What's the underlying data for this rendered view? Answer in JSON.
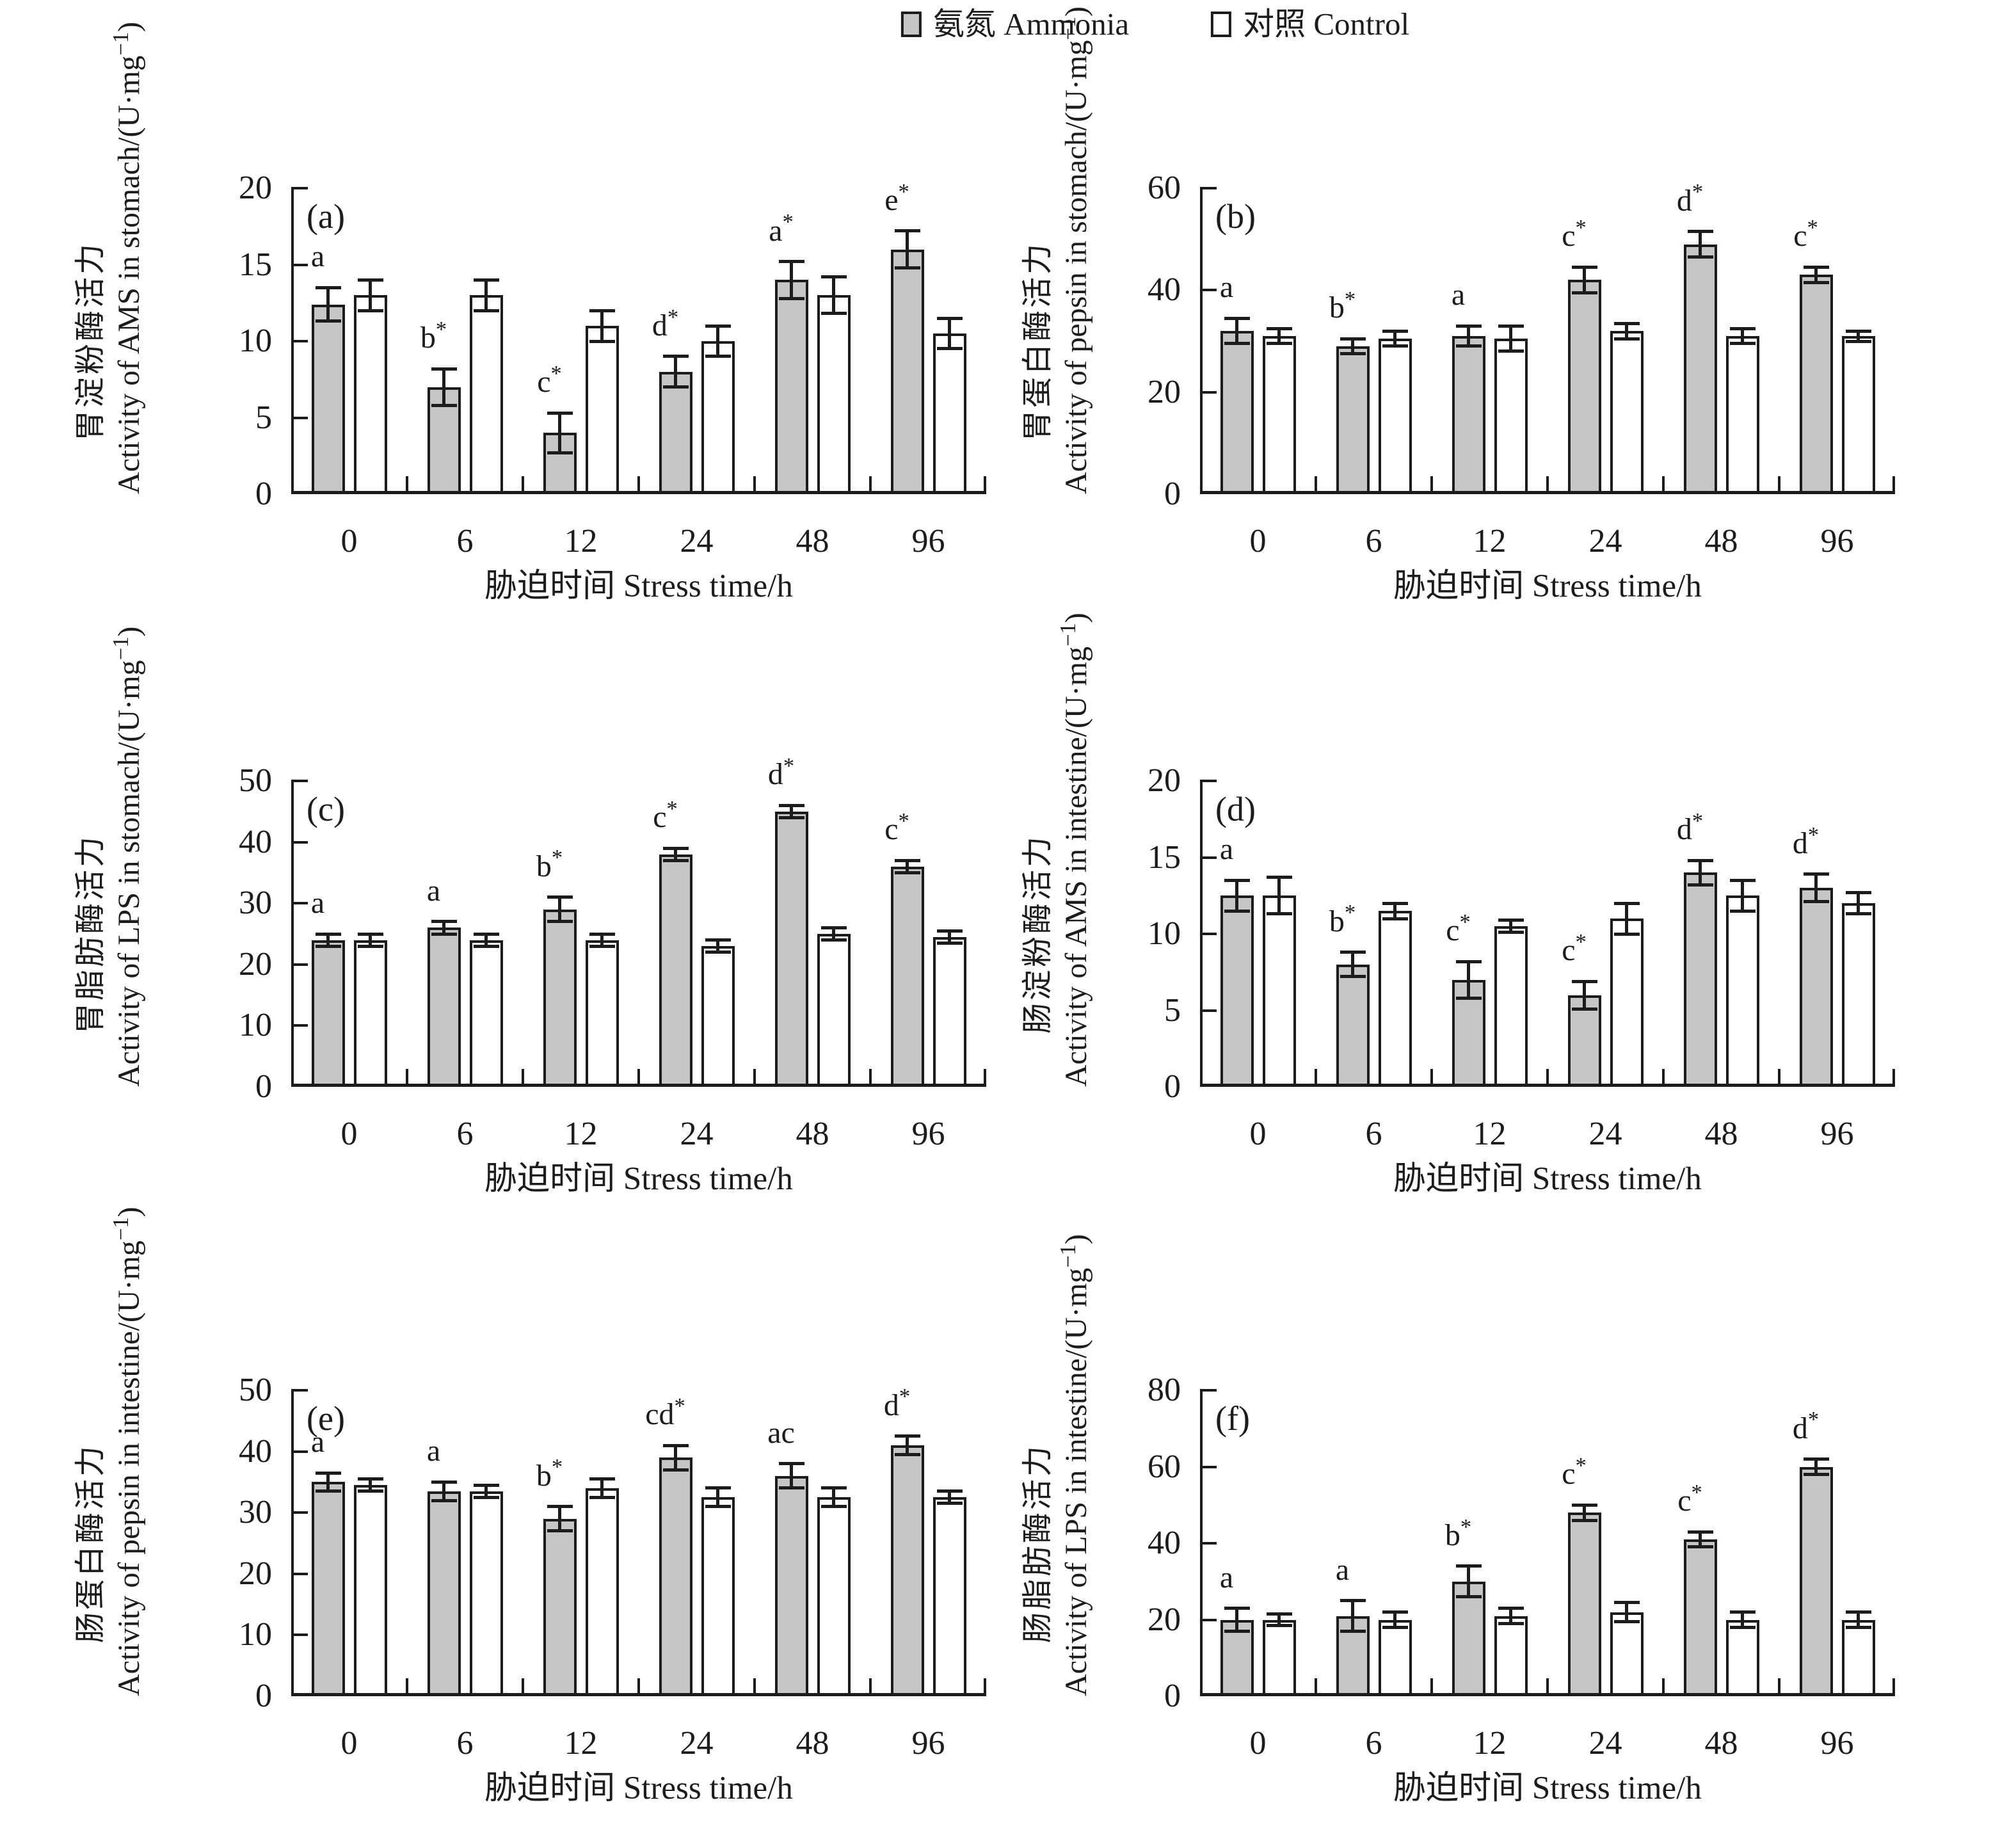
{
  "page": {
    "background": "#ffffff",
    "ink": "#1c1c1c"
  },
  "legend": {
    "items": [
      {
        "label": "氨氮 Ammonia",
        "swatch": "#c6c6c6"
      },
      {
        "label": "对照 Control",
        "swatch": "#ffffff"
      }
    ]
  },
  "chart_data": [
    {
      "type": "bar",
      "panel": "(a)",
      "ylabel_zh": "胃淀粉酶活力",
      "ylabel_en": "Activity of AMS in stomach/(U·mg⁻¹)",
      "xlabel": "胁迫时间 Stress time/h",
      "categories": [
        "0",
        "6",
        "12",
        "24",
        "48",
        "96"
      ],
      "ylim": [
        0,
        20
      ],
      "yticks": [
        0,
        5,
        10,
        15,
        20
      ],
      "series": [
        {
          "name": "氨氮 Ammonia",
          "fill": "#c6c6c6",
          "values": [
            12.4,
            7,
            4,
            8,
            14,
            16
          ],
          "errors": [
            1.1,
            1.2,
            1.3,
            1,
            1.2,
            1.2
          ],
          "labels": [
            "a",
            "b*",
            "c*",
            "d*",
            "a*",
            "e*"
          ]
        },
        {
          "name": "对照 Control",
          "fill": "#ffffff",
          "values": [
            13,
            13,
            11,
            10,
            13,
            10.5
          ],
          "errors": [
            1,
            1,
            1,
            1,
            1.2,
            1
          ],
          "labels": [
            "",
            "",
            "",
            "",
            "",
            ""
          ]
        }
      ]
    },
    {
      "type": "bar",
      "panel": "(b)",
      "ylabel_zh": "胃蛋白酶活力",
      "ylabel_en": "Activity of pepsin in stomach/(U·mg⁻¹)",
      "xlabel": "胁迫时间 Stress time/h",
      "categories": [
        "0",
        "6",
        "12",
        "24",
        "48",
        "96"
      ],
      "ylim": [
        0,
        60
      ],
      "yticks": [
        0,
        20,
        40,
        60
      ],
      "series": [
        {
          "name": "氨氮 Ammonia",
          "fill": "#c6c6c6",
          "values": [
            32,
            29,
            31,
            42,
            49,
            43
          ],
          "errors": [
            2.5,
            1.5,
            2,
            2.5,
            2.5,
            1.5
          ],
          "labels": [
            "a",
            "b*",
            "a",
            "c*",
            "d*",
            "c*"
          ]
        },
        {
          "name": "对照 Control",
          "fill": "#ffffff",
          "values": [
            31,
            30.5,
            30.5,
            32,
            31,
            31
          ],
          "errors": [
            1.5,
            1.5,
            2.5,
            1.5,
            1.5,
            1
          ],
          "labels": [
            "",
            "",
            "",
            "",
            "",
            ""
          ]
        }
      ]
    },
    {
      "type": "bar",
      "panel": "(c)",
      "ylabel_zh": "胃脂肪酶活力",
      "ylabel_en": "Activity of LPS in stomach/(U·mg⁻¹)",
      "xlabel": "胁迫时间 Stress time/h",
      "categories": [
        "0",
        "6",
        "12",
        "24",
        "48",
        "96"
      ],
      "ylim": [
        0,
        50
      ],
      "yticks": [
        0,
        10,
        20,
        30,
        40,
        50
      ],
      "series": [
        {
          "name": "氨氮 Ammonia",
          "fill": "#c6c6c6",
          "values": [
            24,
            26,
            29,
            38,
            45,
            36
          ],
          "errors": [
            1,
            1,
            2,
            1,
            1,
            1
          ],
          "labels": [
            "a",
            "a",
            "b*",
            "c*",
            "d*",
            "c*"
          ]
        },
        {
          "name": "对照 Control",
          "fill": "#ffffff",
          "values": [
            24,
            24,
            24,
            23,
            25,
            24.5
          ],
          "errors": [
            1,
            1,
            1,
            1,
            1,
            1
          ],
          "labels": [
            "",
            "",
            "",
            "",
            "",
            ""
          ]
        }
      ]
    },
    {
      "type": "bar",
      "panel": "(d)",
      "ylabel_zh": "肠淀粉酶活力",
      "ylabel_en": "Activity of AMS in intestine/(U·mg⁻¹)",
      "xlabel": "胁迫时间 Stress time/h",
      "categories": [
        "0",
        "6",
        "12",
        "24",
        "48",
        "96"
      ],
      "ylim": [
        0,
        20
      ],
      "yticks": [
        0,
        5,
        10,
        15,
        20
      ],
      "series": [
        {
          "name": "氨氮 Ammonia",
          "fill": "#c6c6c6",
          "values": [
            12.5,
            8,
            7,
            6,
            14,
            13
          ],
          "errors": [
            1,
            0.8,
            1.2,
            0.9,
            0.8,
            0.9
          ],
          "labels": [
            "a",
            "b*",
            "c*",
            "c*",
            "d*",
            "d*"
          ]
        },
        {
          "name": "对照 Control",
          "fill": "#ffffff",
          "values": [
            12.5,
            11.5,
            10.5,
            11,
            12.5,
            12
          ],
          "errors": [
            1.2,
            0.5,
            0.4,
            1,
            1,
            0.7
          ],
          "labels": [
            "",
            "",
            "",
            "",
            "",
            ""
          ]
        }
      ]
    },
    {
      "type": "bar",
      "panel": "(e)",
      "ylabel_zh": "肠蛋白酶活力",
      "ylabel_en": "Activity of pepsin in intestine/(U·mg⁻¹)",
      "xlabel": "胁迫时间 Stress time/h",
      "categories": [
        "0",
        "6",
        "12",
        "24",
        "48",
        "96"
      ],
      "ylim": [
        0,
        50
      ],
      "yticks": [
        0,
        10,
        20,
        30,
        40,
        50
      ],
      "series": [
        {
          "name": "氨氮 Ammonia",
          "fill": "#c6c6c6",
          "values": [
            35,
            33.5,
            29,
            39,
            36,
            41
          ],
          "errors": [
            1.5,
            1.5,
            2,
            2,
            2,
            1.5
          ],
          "labels": [
            "a",
            "a",
            "b*",
            "cd*",
            "ac",
            "d*"
          ]
        },
        {
          "name": "对照 Control",
          "fill": "#ffffff",
          "values": [
            34.5,
            33.5,
            34,
            32.5,
            32.5,
            32.5
          ],
          "errors": [
            1,
            1,
            1.5,
            1.5,
            1.5,
            1
          ],
          "labels": [
            "",
            "",
            "",
            "",
            "",
            ""
          ]
        }
      ]
    },
    {
      "type": "bar",
      "panel": "(f)",
      "ylabel_zh": "肠脂肪酶活力",
      "ylabel_en": "Activity of LPS in intestine/(U·mg⁻¹)",
      "xlabel": "胁迫时间 Stress time/h",
      "categories": [
        "0",
        "6",
        "12",
        "24",
        "48",
        "96"
      ],
      "ylim": [
        0,
        80
      ],
      "yticks": [
        0,
        20,
        40,
        60,
        80
      ],
      "series": [
        {
          "name": "氨氮 Ammonia",
          "fill": "#c6c6c6",
          "values": [
            20,
            21,
            30,
            48,
            41,
            60
          ],
          "errors": [
            3,
            4,
            4,
            2,
            2,
            2
          ],
          "labels": [
            "a",
            "a",
            "b*",
            "c*",
            "c*",
            "d*"
          ]
        },
        {
          "name": "对照 Control",
          "fill": "#ffffff",
          "values": [
            20,
            20,
            21,
            22,
            20,
            20
          ],
          "errors": [
            1.5,
            2,
            2,
            2.5,
            2,
            2
          ],
          "labels": [
            "",
            "",
            "",
            "",
            "",
            ""
          ]
        }
      ]
    }
  ]
}
